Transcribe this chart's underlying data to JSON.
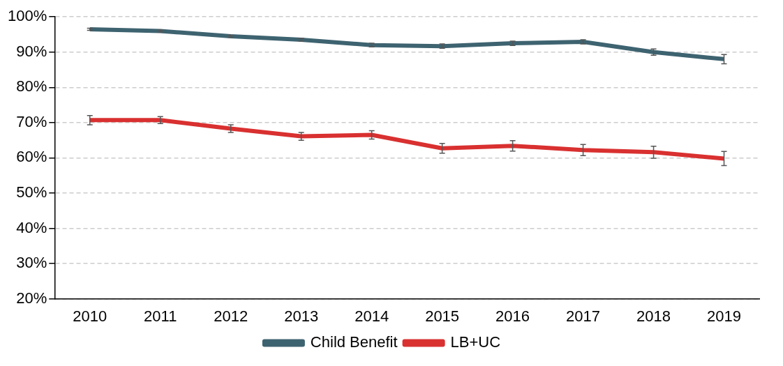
{
  "chart_data": {
    "type": "line",
    "categories": [
      "2010",
      "2011",
      "2012",
      "2013",
      "2014",
      "2015",
      "2016",
      "2017",
      "2018",
      "2019"
    ],
    "series": [
      {
        "name": "Child Benefit",
        "color": "#3e6370",
        "values": [
          96.5,
          96,
          94.5,
          93.5,
          92,
          91.7,
          92.5,
          92.9,
          90,
          88
        ],
        "errors": [
          0.3,
          0.3,
          0.3,
          0.4,
          0.5,
          0.6,
          0.6,
          0.6,
          0.9,
          1.3
        ]
      },
      {
        "name": "LB+UC",
        "color": "#d93030",
        "values": [
          70.7,
          70.7,
          68.3,
          66.1,
          66.5,
          62.7,
          63.4,
          62.2,
          61.6,
          59.8
        ],
        "errors": [
          1.3,
          1,
          1.1,
          1.1,
          1.2,
          1.4,
          1.5,
          1.6,
          1.7,
          2
        ]
      }
    ],
    "ylim": [
      20,
      100
    ],
    "yticks": [
      {
        "value": 20,
        "label": "20%"
      },
      {
        "value": 30,
        "label": "30%"
      },
      {
        "value": 40,
        "label": "40%"
      },
      {
        "value": 50,
        "label": "50%"
      },
      {
        "value": 60,
        "label": "60%"
      },
      {
        "value": 70,
        "label": "70%"
      },
      {
        "value": 80,
        "label": "80%"
      },
      {
        "value": 90,
        "label": "90%"
      },
      {
        "value": 100,
        "label": "100%"
      }
    ],
    "grid": "y",
    "legend": "bottom",
    "line_style": "solid"
  }
}
